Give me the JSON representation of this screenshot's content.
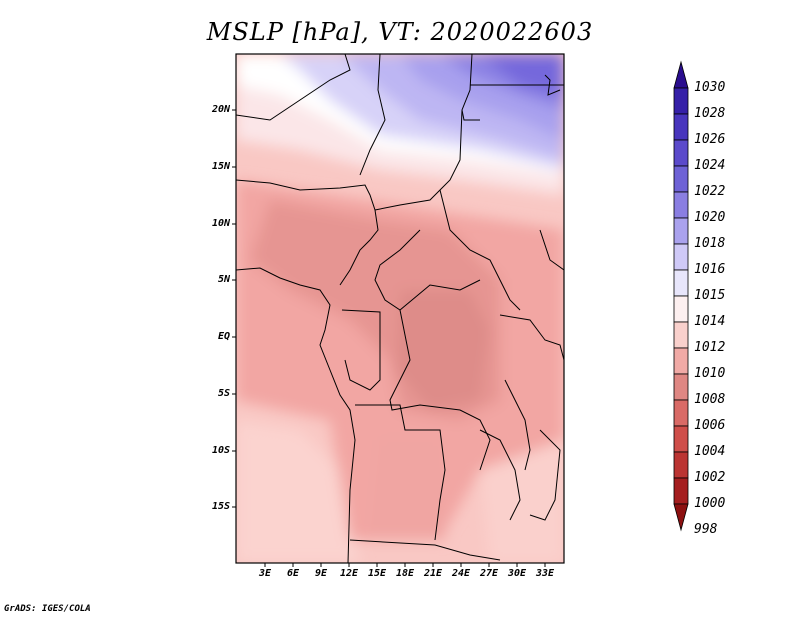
{
  "title": "MSLP [hPa], VT: 2020022603",
  "map": {
    "lat_labels": [
      "20N",
      "15N",
      "10N",
      "5N",
      "EQ",
      "5S",
      "10S",
      "15S"
    ],
    "lon_labels": [
      "3E",
      "6E",
      "9E",
      "12E",
      "15E",
      "18E",
      "21E",
      "24E",
      "27E",
      "30E",
      "33E"
    ],
    "border_color": "#000000"
  },
  "colorbar": {
    "levels": [
      "1030",
      "1028",
      "1026",
      "1024",
      "1022",
      "1020",
      "1018",
      "1016",
      "1015",
      "1014",
      "1012",
      "1010",
      "1008",
      "1006",
      "1004",
      "1002",
      "1000",
      "998"
    ],
    "colors": [
      "#2a0d8e",
      "#3520a8",
      "#4835bd",
      "#5b4acb",
      "#6e62d6",
      "#8a7ee2",
      "#aaa2ee",
      "#cfc9f7",
      "#e8e6fb",
      "#fdf0f0",
      "#f9d0cc",
      "#f1aaa6",
      "#df8783",
      "#d96a66",
      "#cf4e4a",
      "#bb3432",
      "#a51e1f",
      "#8c1010"
    ]
  },
  "credit": "GrADS: IGES/COLA"
}
